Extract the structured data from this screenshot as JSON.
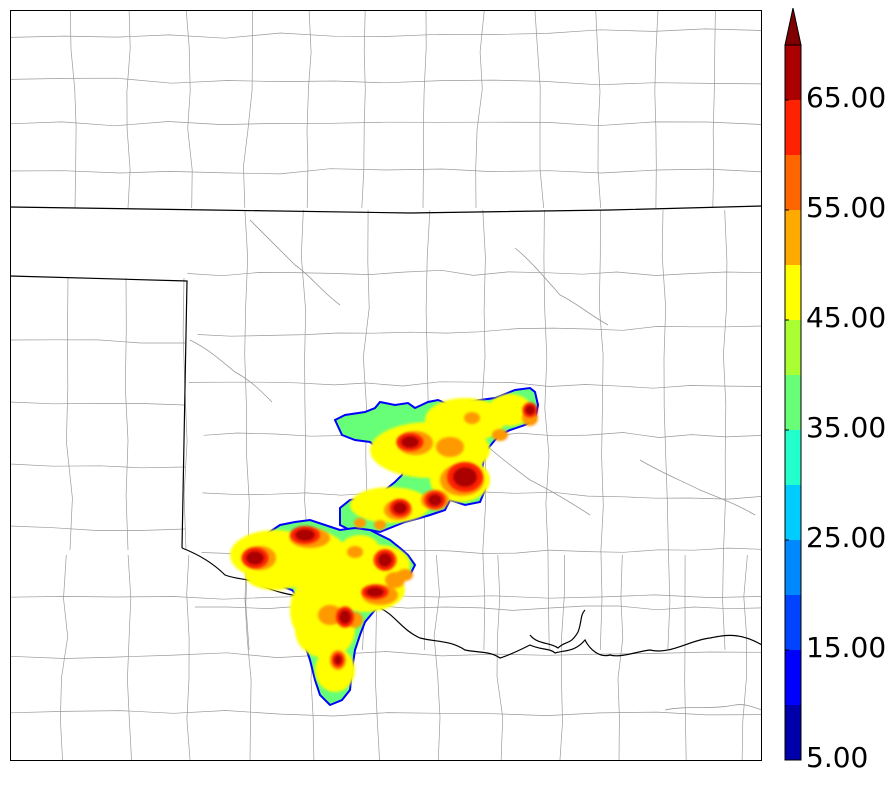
{
  "colorbar": {
    "tick_labels": [
      "5.00",
      "15.00",
      "25.00",
      "35.00",
      "45.00",
      "55.00",
      "65.00"
    ],
    "tick_values": [
      5,
      15,
      25,
      35,
      45,
      55,
      65
    ],
    "range": [
      5,
      70
    ],
    "extend": "max",
    "bin_width": 5,
    "colors": [
      "#0000aa",
      "#0000ff",
      "#0044ff",
      "#0088ff",
      "#00ccff",
      "#22ffcc",
      "#66ff77",
      "#aaff33",
      "#ffff00",
      "#ffaa00",
      "#ff6600",
      "#ff2200",
      "#aa0000"
    ],
    "extend_color": "#800000"
  },
  "map": {
    "boundary_color": "#000000",
    "county_color": "#9a9a9a",
    "field_outline_color": "#0000ff"
  }
}
